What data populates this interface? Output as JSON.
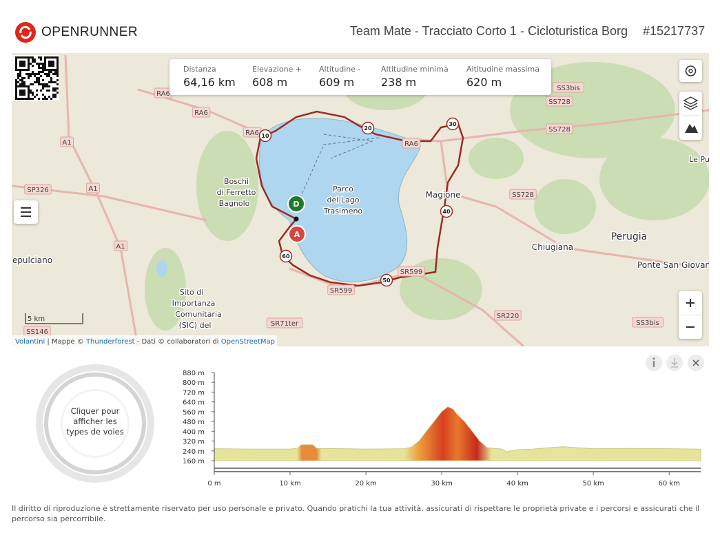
{
  "header": {
    "brand": "OPENRUNNER",
    "title": "Team Mate - Tracciato Corto 1 - Cicloturistica Borg",
    "route_id": "#15217737"
  },
  "stats": [
    {
      "label": "Distanza",
      "value": "64,16 km"
    },
    {
      "label": "Elevazione +",
      "value": "608 m"
    },
    {
      "label": "Altitudine -",
      "value": "609 m"
    },
    {
      "label": "Altitudine minima",
      "value": "238 m"
    },
    {
      "label": "Altitudine massima",
      "value": "620 m"
    }
  ],
  "map": {
    "places": [
      "Boschi",
      "di Ferretto",
      "Bagnolo",
      "Parco",
      "del Lago",
      "Trasimeno",
      "Magione",
      "Chiugiana",
      "Perugia",
      "Ponte San Giovan",
      "Le Pu",
      "epulciano",
      "Sito di",
      "Importanza",
      "Comunitaria",
      "(SIC) del"
    ],
    "roads": [
      "RA6",
      "RA6",
      "RA6",
      "RA6",
      "A1",
      "A1",
      "A1",
      "SP326",
      "SS728",
      "SS728",
      "SS728",
      "SS3bis",
      "SS3bis",
      "SR599",
      "SR599",
      "SR71ter",
      "SS146",
      "SR220"
    ],
    "km_markers": [
      10,
      20,
      30,
      40,
      50,
      60
    ],
    "start": "D",
    "end": "A",
    "scale": "5 km",
    "attribution": [
      "Volantini",
      " | Mappe © ",
      "Thunderforest",
      " - Dati © collaboratori di ",
      "OpenStreetMap"
    ]
  },
  "road_types_button": [
    "Cliquer pour",
    "afficher les",
    "types de voies"
  ],
  "elevation_profile": {
    "type": "area",
    "x": [
      0,
      5,
      10,
      11,
      11.5,
      13,
      13.5,
      20,
      25,
      26,
      27,
      28,
      29,
      30,
      30.8,
      31.5,
      32,
      33,
      34,
      35,
      36,
      38,
      38.5,
      40,
      42,
      44,
      46,
      48,
      50,
      55,
      60,
      64.16
    ],
    "values": [
      258,
      255,
      255,
      262,
      290,
      290,
      260,
      255,
      258,
      270,
      320,
      400,
      480,
      560,
      600,
      580,
      540,
      480,
      400,
      320,
      265,
      255,
      232,
      250,
      255,
      265,
      275,
      265,
      258,
      260,
      258,
      255
    ],
    "xlim": [
      0,
      64.16
    ],
    "ylim": [
      160,
      880
    ],
    "xticks": [
      {
        "value": 0,
        "label": "0 m"
      },
      {
        "value": 10,
        "label": "10 km"
      },
      {
        "value": 20,
        "label": "20 km"
      },
      {
        "value": 30,
        "label": "30 km"
      },
      {
        "value": 40,
        "label": "40 km"
      },
      {
        "value": 50,
        "label": "50 km"
      },
      {
        "value": 60,
        "label": "60 km"
      }
    ],
    "yticks": [
      {
        "value": 160,
        "label": "160 m"
      },
      {
        "value": 240,
        "label": "240 m"
      },
      {
        "value": 320,
        "label": "320 m"
      },
      {
        "value": 400,
        "label": "400 m"
      },
      {
        "value": 480,
        "label": "480 m"
      },
      {
        "value": 560,
        "label": "560 m"
      },
      {
        "value": 640,
        "label": "640 m"
      },
      {
        "value": 720,
        "label": "720 m"
      },
      {
        "value": 800,
        "label": "800 m"
      },
      {
        "value": 880,
        "label": "880 m"
      }
    ]
  },
  "footer": "Il diritto di riproduzione è strettamente riservato per uso personale e privato. Quando pratichi la tua attività, assicurati di rispettare le proprietà private e i percorsi e assicurati che il percorso sia percorribile."
}
